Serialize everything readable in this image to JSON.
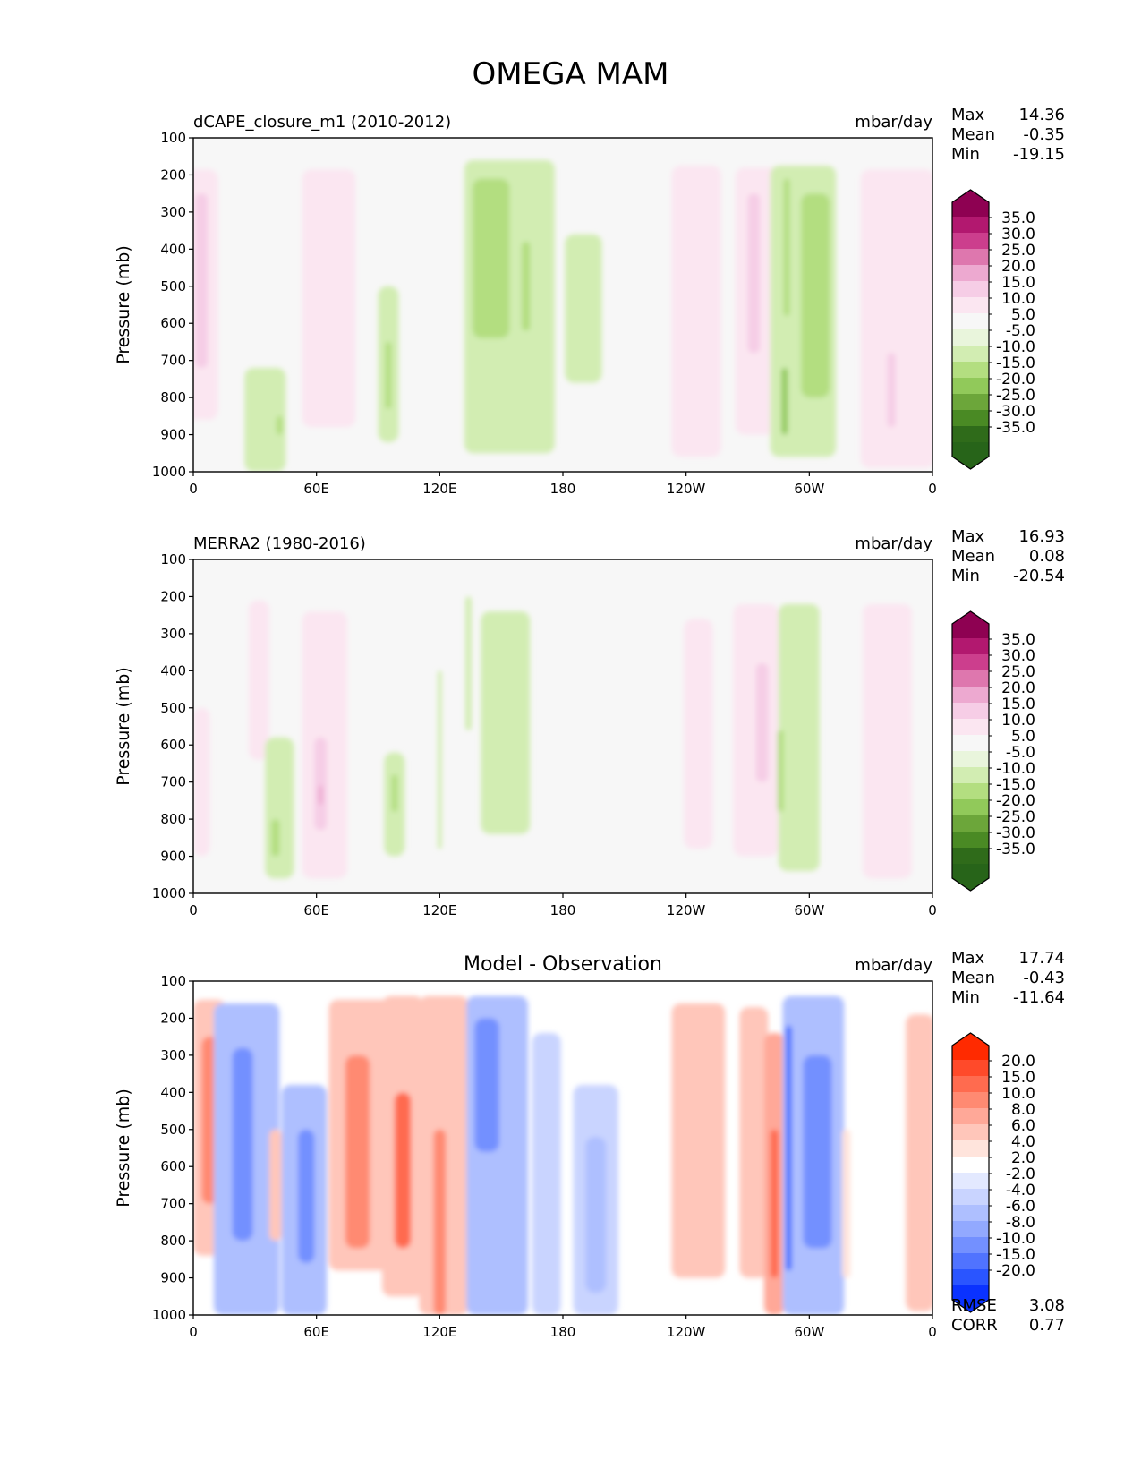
{
  "figure_title": "OMEGA MAM",
  "chart_data": [
    {
      "type": "heatmap",
      "title": "dCAPE_closure_m1 (2010-2012)",
      "units": "mbar/day",
      "ylabel": "Pressure (mb)",
      "xlabel": "",
      "xlim": [
        0,
        360
      ],
      "ylim": [
        1000,
        100
      ],
      "x_ticks": [
        "0",
        "60E",
        "120E",
        "180",
        "120W",
        "60W",
        "0"
      ],
      "y_ticks": [
        "100",
        "200",
        "300",
        "400",
        "500",
        "600",
        "700",
        "800",
        "900",
        "1000"
      ],
      "stats": {
        "max_label": "Max",
        "max": "14.36",
        "mean_label": "Mean",
        "mean": "-0.35",
        "min_label": "Min",
        "min": "-19.15"
      },
      "colorbar": {
        "extend": "both",
        "tick_labels": [
          "35.0",
          "30.0",
          "25.0",
          "20.0",
          "15.0",
          "10.0",
          "5.0",
          "-5.0",
          "-10.0",
          "-15.0",
          "-20.0",
          "-25.0",
          "-30.0",
          "-35.0"
        ],
        "colors": [
          "#8e0152",
          "#b2186f",
          "#cc3e8d",
          "#de77ae",
          "#eda9d0",
          "#f6cde6",
          "#fbe6f1",
          "#f7f7f7",
          "#e9f5dc",
          "#d2edb2",
          "#b3de80",
          "#91c95a",
          "#6ca63a",
          "#4a8a24",
          "#2f6b1a",
          "#276419"
        ]
      },
      "features": [
        {
          "lon": 4,
          "p_top": 185,
          "p_bot": 860,
          "w": 16,
          "value": 5
        },
        {
          "lon": 4,
          "p_top": 250,
          "p_bot": 720,
          "w": 6,
          "value": 10
        },
        {
          "lon": 35,
          "p_top": 720,
          "p_bot": 1000,
          "w": 20,
          "value": -5
        },
        {
          "lon": 42,
          "p_top": 850,
          "p_bot": 900,
          "w": 3,
          "value": -10
        },
        {
          "lon": 66,
          "p_top": 185,
          "p_bot": 880,
          "w": 26,
          "value": 5
        },
        {
          "lon": 95,
          "p_top": 500,
          "p_bot": 920,
          "w": 10,
          "value": -5
        },
        {
          "lon": 95,
          "p_top": 650,
          "p_bot": 830,
          "w": 3,
          "value": -10
        },
        {
          "lon": 154,
          "p_top": 160,
          "p_bot": 950,
          "w": 44,
          "value": -5
        },
        {
          "lon": 145,
          "p_top": 210,
          "p_bot": 640,
          "w": 18,
          "value": -10
        },
        {
          "lon": 162,
          "p_top": 380,
          "p_bot": 620,
          "w": 4,
          "value": -10
        },
        {
          "lon": 190,
          "p_top": 360,
          "p_bot": 760,
          "w": 18,
          "value": -5
        },
        {
          "lon": 245,
          "p_top": 175,
          "p_bot": 960,
          "w": 24,
          "value": 5
        },
        {
          "lon": 275,
          "p_top": 180,
          "p_bot": 900,
          "w": 22,
          "value": 5
        },
        {
          "lon": 273,
          "p_top": 250,
          "p_bot": 680,
          "w": 6,
          "value": 10
        },
        {
          "lon": 297,
          "p_top": 175,
          "p_bot": 960,
          "w": 32,
          "value": -5
        },
        {
          "lon": 303,
          "p_top": 250,
          "p_bot": 800,
          "w": 14,
          "value": -10
        },
        {
          "lon": 289,
          "p_top": 210,
          "p_bot": 580,
          "w": 3,
          "value": -10
        },
        {
          "lon": 288,
          "p_top": 720,
          "p_bot": 900,
          "w": 3,
          "value": -15
        },
        {
          "lon": 343,
          "p_top": 185,
          "p_bot": 990,
          "w": 36,
          "value": 5
        },
        {
          "lon": 340,
          "p_top": 680,
          "p_bot": 880,
          "w": 4,
          "value": 10
        }
      ]
    },
    {
      "type": "heatmap",
      "title": "MERRA2 (1980-2016)",
      "units": "mbar/day",
      "ylabel": "Pressure (mb)",
      "xlabel": "",
      "xlim": [
        0,
        360
      ],
      "ylim": [
        1000,
        100
      ],
      "x_ticks": [
        "0",
        "60E",
        "120E",
        "180",
        "120W",
        "60W",
        "0"
      ],
      "y_ticks": [
        "100",
        "200",
        "300",
        "400",
        "500",
        "600",
        "700",
        "800",
        "900",
        "1000"
      ],
      "stats": {
        "max_label": "Max",
        "max": "16.93",
        "mean_label": "Mean",
        "mean": "0.08",
        "min_label": "Min",
        "min": "-20.54"
      },
      "colorbar": {
        "extend": "both",
        "tick_labels": [
          "35.0",
          "30.0",
          "25.0",
          "20.0",
          "15.0",
          "10.0",
          "5.0",
          "-5.0",
          "-10.0",
          "-15.0",
          "-20.0",
          "-25.0",
          "-30.0",
          "-35.0"
        ],
        "colors": [
          "#8e0152",
          "#b2186f",
          "#cc3e8d",
          "#de77ae",
          "#eda9d0",
          "#f6cde6",
          "#fbe6f1",
          "#f7f7f7",
          "#e9f5dc",
          "#d2edb2",
          "#b3de80",
          "#91c95a",
          "#6ca63a",
          "#4a8a24",
          "#2f6b1a",
          "#276419"
        ]
      },
      "features": [
        {
          "lon": 4,
          "p_top": 500,
          "p_bot": 900,
          "w": 8,
          "value": 5
        },
        {
          "lon": 32,
          "p_top": 210,
          "p_bot": 640,
          "w": 10,
          "value": 5
        },
        {
          "lon": 42,
          "p_top": 580,
          "p_bot": 960,
          "w": 14,
          "value": -5
        },
        {
          "lon": 40,
          "p_top": 800,
          "p_bot": 900,
          "w": 4,
          "value": -10
        },
        {
          "lon": 64,
          "p_top": 240,
          "p_bot": 960,
          "w": 22,
          "value": 5
        },
        {
          "lon": 62,
          "p_top": 580,
          "p_bot": 830,
          "w": 6,
          "value": 10
        },
        {
          "lon": 62,
          "p_top": 710,
          "p_bot": 760,
          "w": 2,
          "value": 15
        },
        {
          "lon": 98,
          "p_top": 620,
          "p_bot": 900,
          "w": 10,
          "value": -5
        },
        {
          "lon": 98,
          "p_top": 680,
          "p_bot": 780,
          "w": 3,
          "value": -10
        },
        {
          "lon": 152,
          "p_top": 240,
          "p_bot": 840,
          "w": 24,
          "value": -5
        },
        {
          "lon": 134,
          "p_top": 200,
          "p_bot": 560,
          "w": 3,
          "value": -5
        },
        {
          "lon": 120,
          "p_top": 400,
          "p_bot": 880,
          "w": 2,
          "value": -5
        },
        {
          "lon": 246,
          "p_top": 260,
          "p_bot": 880,
          "w": 14,
          "value": 5
        },
        {
          "lon": 274,
          "p_top": 220,
          "p_bot": 900,
          "w": 22,
          "value": 5
        },
        {
          "lon": 277,
          "p_top": 380,
          "p_bot": 700,
          "w": 6,
          "value": 10
        },
        {
          "lon": 295,
          "p_top": 220,
          "p_bot": 940,
          "w": 20,
          "value": -5
        },
        {
          "lon": 286,
          "p_top": 560,
          "p_bot": 780,
          "w": 3,
          "value": -10
        },
        {
          "lon": 338,
          "p_top": 220,
          "p_bot": 960,
          "w": 24,
          "value": 5
        }
      ]
    },
    {
      "type": "heatmap",
      "title": "Model - Observation",
      "units": "mbar/day",
      "ylabel": "Pressure (mb)",
      "xlabel": "",
      "xlim": [
        0,
        360
      ],
      "ylim": [
        1000,
        100
      ],
      "x_ticks": [
        "0",
        "60E",
        "120E",
        "180",
        "120W",
        "60W",
        "0"
      ],
      "y_ticks": [
        "100",
        "200",
        "300",
        "400",
        "500",
        "600",
        "700",
        "800",
        "900",
        "1000"
      ],
      "stats": {
        "max_label": "Max",
        "max": "17.74",
        "mean_label": "Mean",
        "mean": "-0.43",
        "min_label": "Min",
        "min": "-11.64"
      },
      "metrics": {
        "rmse_label": "RMSE",
        "rmse": "3.08",
        "corr_label": "CORR",
        "corr": "0.77"
      },
      "colorbar": {
        "extend": "both",
        "tick_labels": [
          "20.0",
          "15.0",
          "10.0",
          "8.0",
          "6.0",
          "4.0",
          "2.0",
          "-2.0",
          "-4.0",
          "-6.0",
          "-8.0",
          "-10.0",
          "-15.0",
          "-20.0"
        ],
        "colors": [
          "#ff2a00",
          "#ff4a2a",
          "#ff6b4f",
          "#ff8a72",
          "#ffa898",
          "#ffc6ba",
          "#ffe4dc",
          "#ffffff",
          "#e3e9ff",
          "#c9d4ff",
          "#aebfff",
          "#92a9ff",
          "#7390ff",
          "#5073ff",
          "#2a55ff",
          "#0a32ff"
        ]
      },
      "features": [
        {
          "lon": 8,
          "p_top": 150,
          "p_bot": 840,
          "w": 16,
          "value": 4
        },
        {
          "lon": 8,
          "p_top": 250,
          "p_bot": 700,
          "w": 8,
          "value": 8
        },
        {
          "lon": 26,
          "p_top": 160,
          "p_bot": 1000,
          "w": 32,
          "value": -4
        },
        {
          "lon": 24,
          "p_top": 280,
          "p_bot": 800,
          "w": 10,
          "value": -8
        },
        {
          "lon": 40,
          "p_top": 500,
          "p_bot": 800,
          "w": 6,
          "value": 4
        },
        {
          "lon": 54,
          "p_top": 380,
          "p_bot": 1000,
          "w": 22,
          "value": -4
        },
        {
          "lon": 55,
          "p_top": 500,
          "p_bot": 860,
          "w": 8,
          "value": -8
        },
        {
          "lon": 82,
          "p_top": 150,
          "p_bot": 880,
          "w": 32,
          "value": 4
        },
        {
          "lon": 80,
          "p_top": 300,
          "p_bot": 820,
          "w": 12,
          "value": 8
        },
        {
          "lon": 102,
          "p_top": 140,
          "p_bot": 950,
          "w": 20,
          "value": 4
        },
        {
          "lon": 102,
          "p_top": 400,
          "p_bot": 820,
          "w": 8,
          "value": 10
        },
        {
          "lon": 122,
          "p_top": 140,
          "p_bot": 1000,
          "w": 24,
          "value": 4
        },
        {
          "lon": 120,
          "p_top": 500,
          "p_bot": 1000,
          "w": 6,
          "value": 8
        },
        {
          "lon": 148,
          "p_top": 140,
          "p_bot": 1000,
          "w": 30,
          "value": -4
        },
        {
          "lon": 143,
          "p_top": 200,
          "p_bot": 560,
          "w": 12,
          "value": -8
        },
        {
          "lon": 172,
          "p_top": 240,
          "p_bot": 1000,
          "w": 14,
          "value": -2
        },
        {
          "lon": 196,
          "p_top": 380,
          "p_bot": 1000,
          "w": 22,
          "value": -2
        },
        {
          "lon": 196,
          "p_top": 520,
          "p_bot": 940,
          "w": 10,
          "value": -4
        },
        {
          "lon": 246,
          "p_top": 160,
          "p_bot": 900,
          "w": 26,
          "value": 4
        },
        {
          "lon": 273,
          "p_top": 170,
          "p_bot": 900,
          "w": 14,
          "value": 4
        },
        {
          "lon": 283,
          "p_top": 240,
          "p_bot": 1000,
          "w": 10,
          "value": 6
        },
        {
          "lon": 283,
          "p_top": 500,
          "p_bot": 900,
          "w": 4,
          "value": 10
        },
        {
          "lon": 302,
          "p_top": 140,
          "p_bot": 1000,
          "w": 30,
          "value": -4
        },
        {
          "lon": 304,
          "p_top": 300,
          "p_bot": 820,
          "w": 14,
          "value": -8
        },
        {
          "lon": 290,
          "p_top": 220,
          "p_bot": 880,
          "w": 3,
          "value": -10
        },
        {
          "lon": 318,
          "p_top": 500,
          "p_bot": 900,
          "w": 4,
          "value": 2
        },
        {
          "lon": 354,
          "p_top": 190,
          "p_bot": 990,
          "w": 14,
          "value": 4
        }
      ]
    }
  ]
}
